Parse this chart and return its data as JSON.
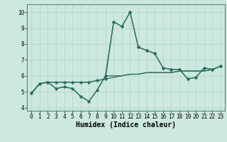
{
  "xlabel": "Humidex (Indice chaleur)",
  "ylabel": "",
  "background_color": "#cde8df",
  "grid_color": "#b0d4c8",
  "line_color": "#2e6e62",
  "xlim": [
    -0.5,
    23.5
  ],
  "ylim": [
    3.8,
    10.5
  ],
  "xticks": [
    0,
    1,
    2,
    3,
    4,
    5,
    6,
    7,
    8,
    9,
    10,
    11,
    12,
    13,
    14,
    15,
    16,
    17,
    18,
    19,
    20,
    21,
    22,
    23
  ],
  "yticks": [
    4,
    5,
    6,
    7,
    8,
    9,
    10
  ],
  "series": [
    [
      4.9,
      5.5,
      5.6,
      5.2,
      5.3,
      5.2,
      4.7,
      4.4,
      5.1,
      6.0,
      9.4,
      9.1,
      10.0,
      7.8,
      7.6,
      7.4,
      6.5,
      6.4,
      6.4,
      5.8,
      5.9,
      6.5,
      6.4,
      6.6
    ],
    [
      4.9,
      5.5,
      5.6,
      5.6,
      5.6,
      5.6,
      5.6,
      5.6,
      5.7,
      5.8,
      5.9,
      6.0,
      6.1,
      6.1,
      6.2,
      6.2,
      6.2,
      6.2,
      6.3,
      6.3,
      6.3,
      6.3,
      6.4,
      6.6
    ],
    [
      4.9,
      5.5,
      5.6,
      5.2,
      5.3,
      5.2,
      4.7,
      4.4,
      5.1,
      6.0,
      6.0,
      6.0,
      6.1,
      6.1,
      6.2,
      6.2,
      6.2,
      6.2,
      6.3,
      6.3,
      6.3,
      6.3,
      6.4,
      6.6
    ],
    [
      4.9,
      5.5,
      5.6,
      5.6,
      5.6,
      5.6,
      5.6,
      5.6,
      5.7,
      5.8,
      9.4,
      9.1,
      10.0,
      7.8,
      7.6,
      7.4,
      6.5,
      6.4,
      6.4,
      5.8,
      5.9,
      6.5,
      6.4,
      6.6
    ]
  ],
  "tick_fontsize": 5.5,
  "xlabel_fontsize": 7,
  "lw": 0.9,
  "ms": 1.8
}
